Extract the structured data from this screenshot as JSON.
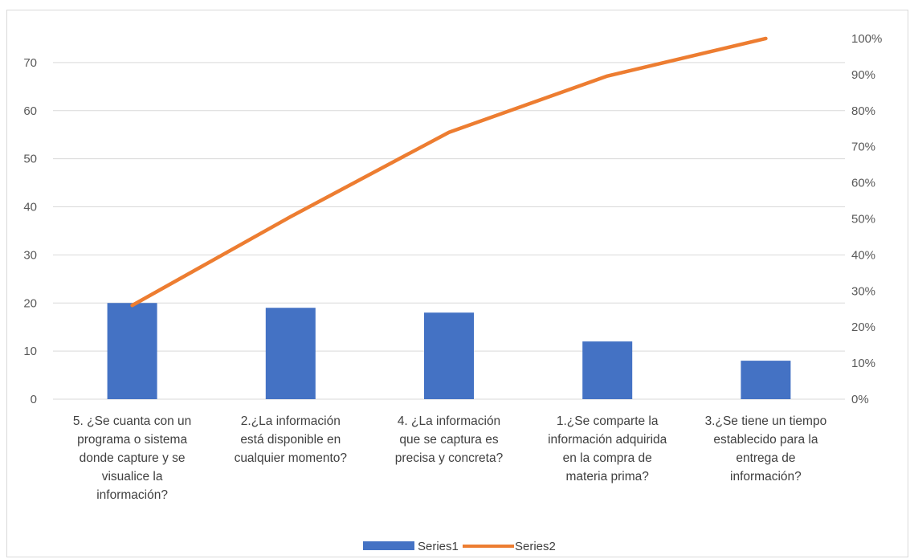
{
  "chart_data": {
    "type": "bar",
    "categories": [
      [
        "5. ¿Se cuanta con un",
        "programa o sistema",
        "donde capture y se",
        "visualice la",
        "información?"
      ],
      [
        "2.¿La información",
        "está disponible en",
        "cualquier momento?"
      ],
      [
        "4. ¿La información",
        "que se captura es",
        "precisa y concreta?"
      ],
      [
        "1.¿Se comparte la",
        "información adquirida",
        "en la compra de",
        "materia prima?"
      ],
      [
        "3.¿Se tiene un tiempo",
        "establecido para la",
        "entrega de",
        "información?"
      ]
    ],
    "series": [
      {
        "name": "Series1",
        "type": "bar",
        "axis": "left",
        "color": "#4472C4",
        "values": [
          20,
          19,
          18,
          12,
          8
        ]
      },
      {
        "name": "Series2",
        "type": "line",
        "axis": "right",
        "color": "#ED7D31",
        "values": [
          0.26,
          0.506,
          0.74,
          0.896,
          1.0
        ]
      }
    ],
    "left_axis": {
      "ticks": [
        "0",
        "10",
        "20",
        "30",
        "40",
        "50",
        "60",
        "70"
      ],
      "min": 0,
      "max": 78
    },
    "right_axis": {
      "ticks": [
        "0%",
        "10%",
        "20%",
        "30%",
        "40%",
        "50%",
        "60%",
        "70%",
        "80%",
        "90%",
        "100%"
      ],
      "min": 0,
      "max": 1.04
    },
    "grid": true,
    "legend": "bottom-center",
    "title": "",
    "xlabel": "",
    "ylabel": ""
  }
}
